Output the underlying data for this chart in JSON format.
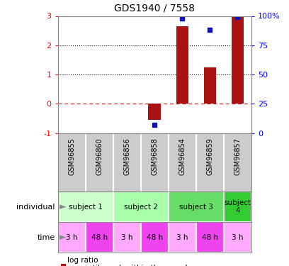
{
  "title": "GDS1940 / 7558",
  "samples": [
    "GSM96855",
    "GSM96860",
    "GSM96856",
    "GSM96858",
    "GSM96854",
    "GSM96859",
    "GSM96857"
  ],
  "log_ratios": [
    0,
    0,
    0,
    -0.55,
    2.65,
    1.25,
    3.0
  ],
  "percentile_ranks": [
    null,
    null,
    null,
    0.07,
    0.98,
    0.88,
    0.99
  ],
  "individuals": [
    {
      "label": "subject 1",
      "start": 0,
      "end": 2,
      "color": "#ccffcc"
    },
    {
      "label": "subject 2",
      "start": 2,
      "end": 4,
      "color": "#aaffaa"
    },
    {
      "label": "subject 3",
      "start": 4,
      "end": 6,
      "color": "#66dd66"
    },
    {
      "label": "subject\n4",
      "start": 6,
      "end": 7,
      "color": "#33cc33"
    }
  ],
  "times": [
    "3 h",
    "48 h",
    "3 h",
    "48 h",
    "3 h",
    "48 h",
    "3 h"
  ],
  "time_colors": [
    "#ffaaff",
    "#ee44ee",
    "#ffaaff",
    "#ee44ee",
    "#ffaaff",
    "#ee44ee",
    "#ffaaff"
  ],
  "bar_color": "#aa1111",
  "dot_color": "#1111bb",
  "left_ylim": [
    -1,
    3
  ],
  "left_yticks": [
    -1,
    0,
    1,
    2,
    3
  ],
  "right_ylim": [
    0,
    100
  ],
  "right_yticks": [
    0,
    25,
    50,
    75,
    100
  ],
  "right_yticklabels": [
    "0",
    "25",
    "50",
    "75",
    "100%"
  ],
  "dotted_lines": [
    1,
    2
  ],
  "background_color": "#ffffff",
  "sample_area_color": "#cccccc",
  "border_color": "#888888"
}
